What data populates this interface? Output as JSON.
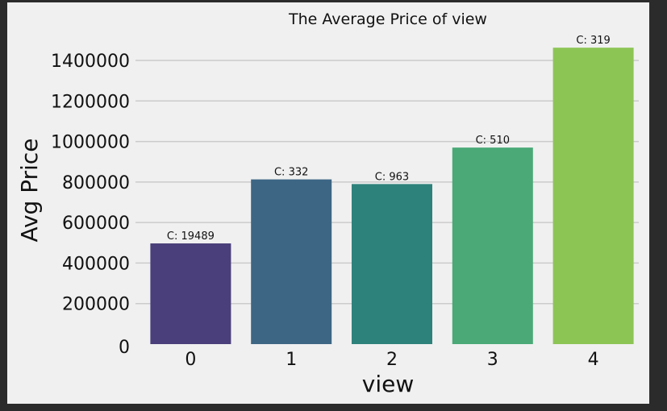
{
  "chart_data": {
    "type": "bar",
    "title": "The Average Price of view",
    "xlabel": "view",
    "ylabel": "Avg Price",
    "categories": [
      "0",
      "1",
      "2",
      "3",
      "4"
    ],
    "values": [
      497000,
      813000,
      790000,
      970000,
      1463000
    ],
    "data_labels": [
      "C: 19489",
      "C: 332",
      "C: 963",
      "C: 510",
      "C: 319"
    ],
    "ylim": [
      0,
      1500000
    ],
    "yticks": [
      0,
      200000,
      400000,
      600000,
      800000,
      1000000,
      1200000,
      1400000
    ],
    "ytick_labels": [
      "0",
      "200000",
      "400000",
      "600000",
      "800000",
      "1000000",
      "1200000",
      "1400000"
    ],
    "grid": true,
    "colors": [
      "#4a3f7a",
      "#3d6684",
      "#2e827c",
      "#4aa977",
      "#8dc555"
    ]
  }
}
